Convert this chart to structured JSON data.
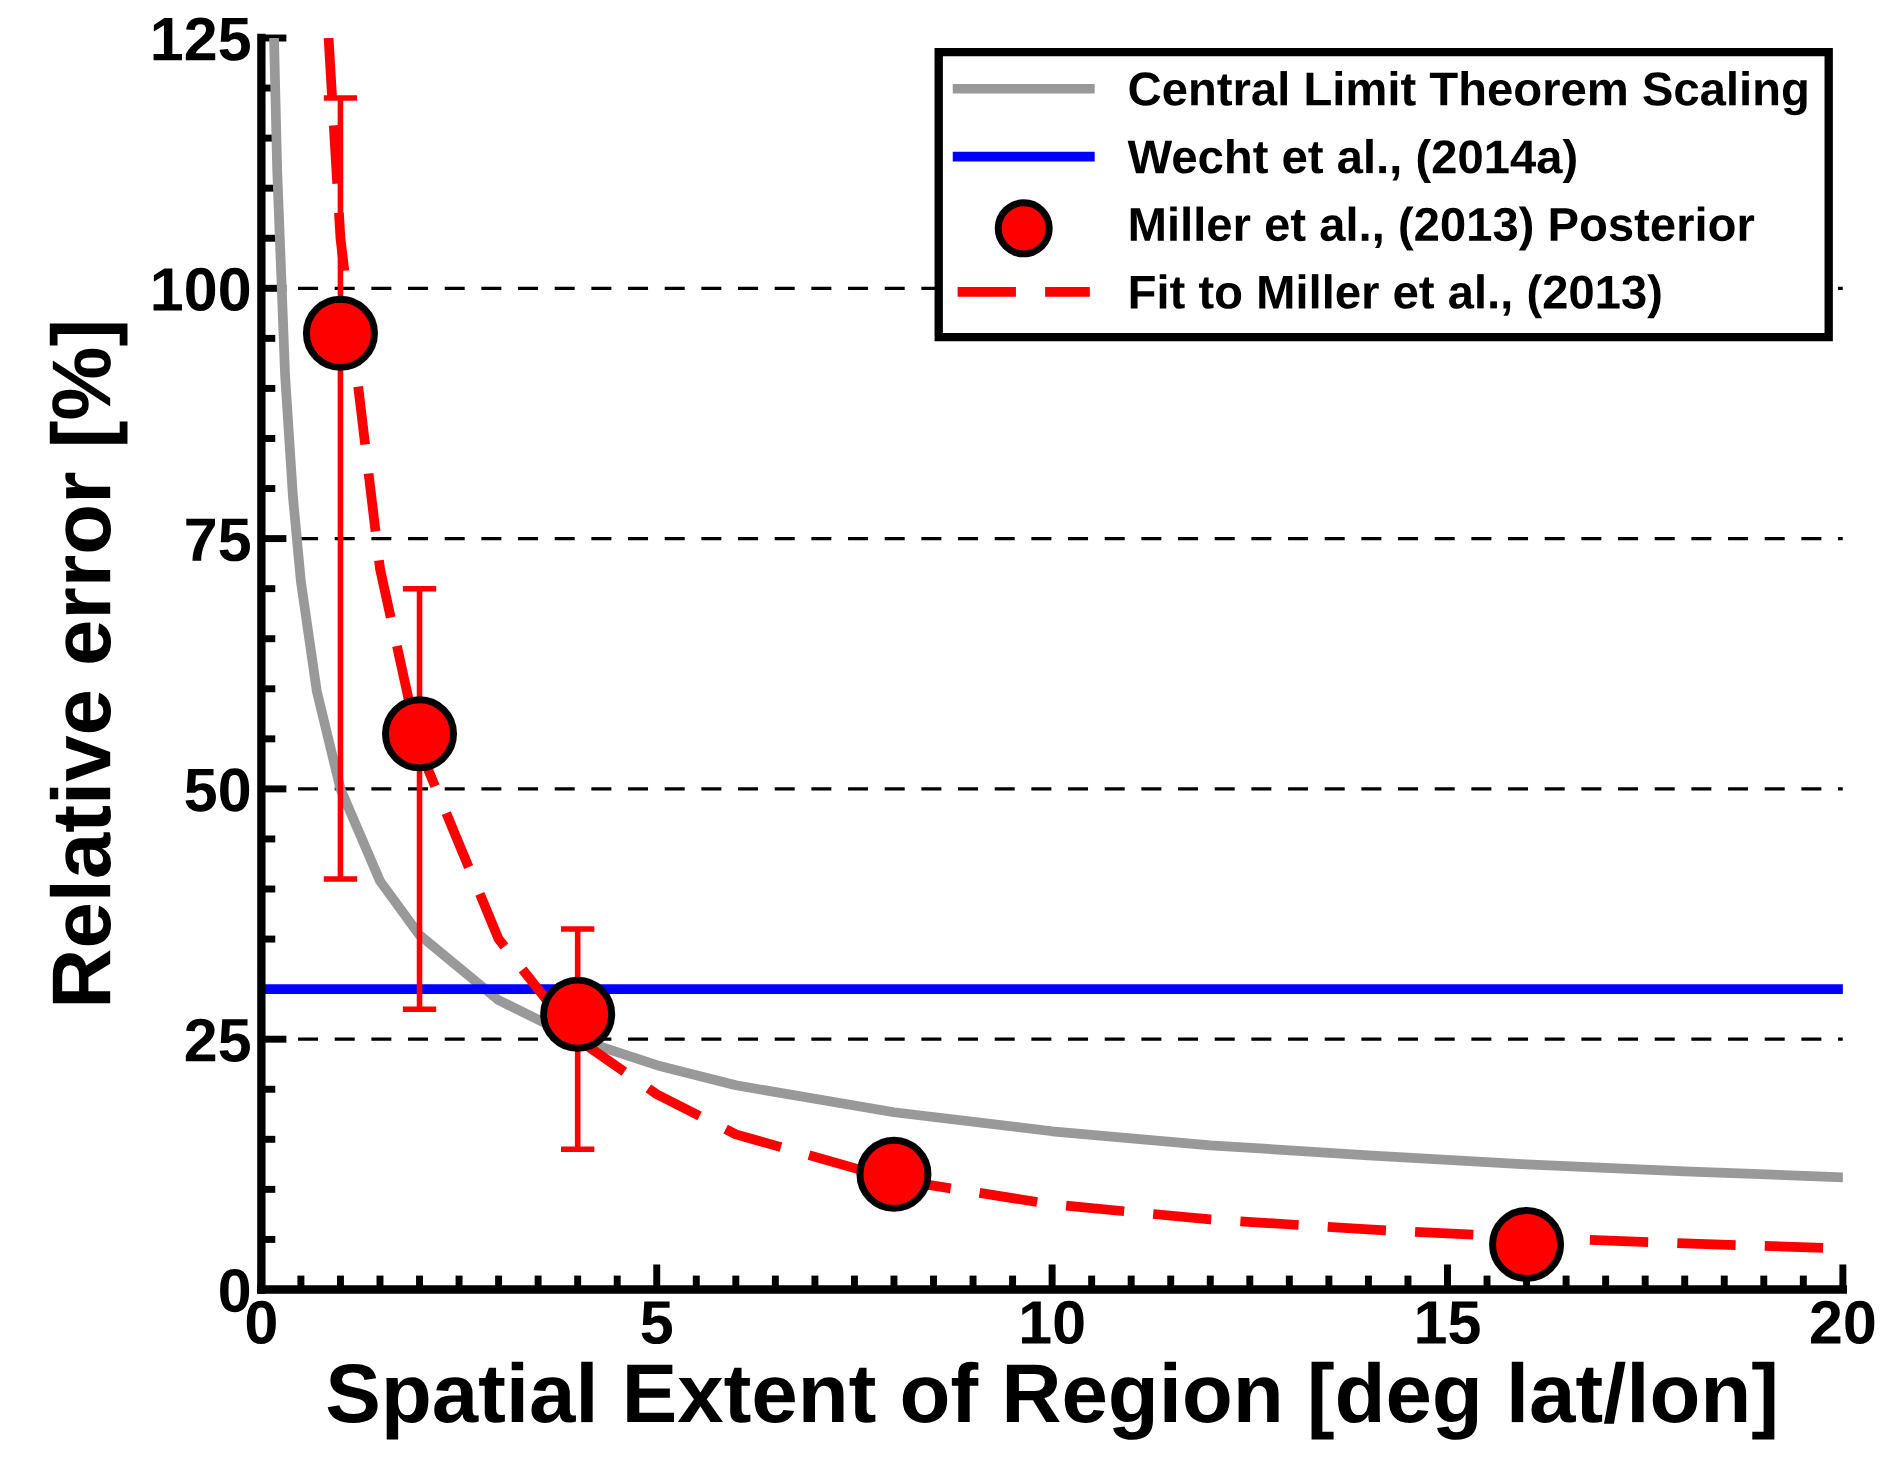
{
  "chart_data": {
    "type": "line",
    "xlabel": "Spatial Extent of Region [deg lat/lon]",
    "ylabel": "Relative error [%]",
    "xlim": [
      0,
      20
    ],
    "xticks": [
      0,
      5,
      10,
      15,
      20
    ],
    "ylim": [
      0,
      125
    ],
    "yticks": [
      0,
      25,
      50,
      75,
      100,
      125
    ],
    "grid": "y",
    "legend": "top right",
    "series": [
      {
        "name": "Central Limit Theorem Scaling",
        "color": "#999999",
        "line_style": "solid",
        "marker": "none",
        "x": [
          0.16,
          0.2,
          0.3,
          0.4,
          0.5,
          0.7,
          1,
          1.5,
          2,
          3,
          4,
          5,
          6,
          8,
          10,
          12,
          14,
          16,
          18,
          20
        ],
        "values": [
          125,
          111.8,
          91.3,
          79.1,
          70.7,
          59.8,
          50,
          40.8,
          35.4,
          28.9,
          25,
          22.4,
          20.4,
          17.7,
          15.8,
          14.4,
          13.4,
          12.5,
          11.8,
          11.2
        ]
      },
      {
        "name": "Wecht et al., (2014a)",
        "color": "#0000ff",
        "line_style": "solid",
        "marker": "none",
        "x": [
          0,
          20
        ],
        "values": [
          30,
          30
        ]
      },
      {
        "name": "Miller et al., (2013) Posterior",
        "type": "scatter",
        "color": "#ff0000",
        "marker": "circle",
        "x": [
          1,
          2,
          4,
          8,
          16
        ],
        "values": [
          95.5,
          55.5,
          27.5,
          11.5,
          4.5
        ],
        "errors": [
          [
            41,
            119
          ],
          [
            28,
            70
          ],
          [
            14,
            36
          ],
          null,
          null
        ]
      },
      {
        "name": "Fit to Miller et al., (2013)",
        "color": "#ff0000",
        "line_style": "dashed",
        "marker": "none",
        "x": [
          0.85,
          1,
          1.5,
          2,
          3,
          4,
          5,
          6,
          8,
          10,
          12,
          14,
          16,
          18,
          20
        ],
        "values": [
          125,
          105,
          72,
          54,
          35,
          25,
          19.5,
          15.5,
          11,
          8.5,
          7,
          6,
          5.2,
          4.6,
          4.1
        ]
      }
    ]
  }
}
